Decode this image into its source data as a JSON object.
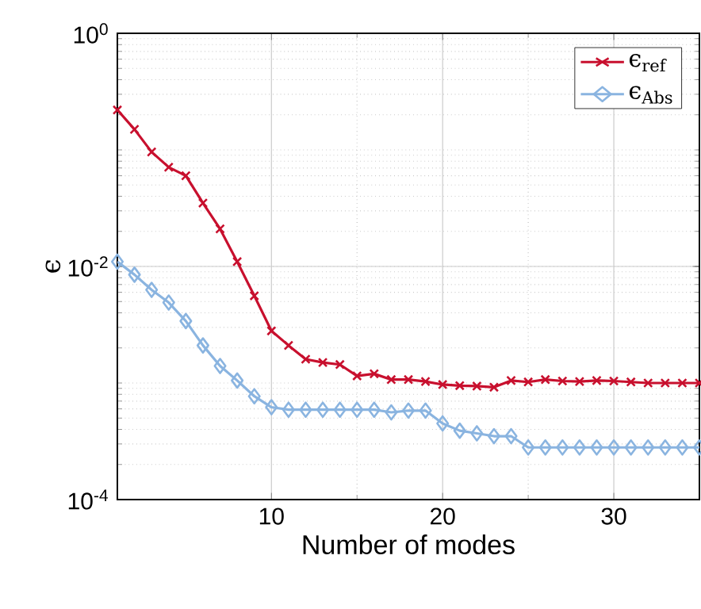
{
  "chart_data": {
    "type": "line",
    "xlabel": "Number of modes",
    "ylabel": "ϵ",
    "log": "y",
    "grid": true,
    "legend": "top right",
    "xlim": [
      1,
      35
    ],
    "xticks": [
      10,
      20,
      30
    ],
    "ylim": [
      0.0001,
      1
    ],
    "yticks": [
      {
        "value": 0.0001,
        "label": "10$^{-4}$"
      },
      {
        "value": 0.01,
        "label": "10$^{-2}$"
      },
      {
        "value": 1,
        "label": "10$^{0}$"
      }
    ],
    "x": [
      1,
      2,
      3,
      4,
      5,
      6,
      7,
      8,
      9,
      10,
      11,
      12,
      13,
      14,
      15,
      16,
      17,
      18,
      19,
      20,
      21,
      22,
      23,
      24,
      25,
      26,
      27,
      28,
      29,
      30,
      31,
      32,
      33,
      34,
      35
    ],
    "series": [
      {
        "name": "ϵ$_{ref}$",
        "color": "#c8102e",
        "marker": "cross",
        "values": [
          0.22,
          0.15,
          0.096,
          0.071,
          0.06,
          0.035,
          0.021,
          0.011,
          0.0056,
          0.0028,
          0.0021,
          0.0016,
          0.0015,
          0.00144,
          0.00115,
          0.0012,
          0.00107,
          0.00107,
          0.00103,
          0.00097,
          0.00095,
          0.00094,
          0.00092,
          0.00105,
          0.00102,
          0.00107,
          0.00104,
          0.00103,
          0.00105,
          0.00104,
          0.00102,
          0.001,
          0.001,
          0.001,
          0.001
        ]
      },
      {
        "name": "ϵ$_{Abs}$",
        "color": "#8ab4e0",
        "marker": "diamond",
        "values": [
          0.011,
          0.0085,
          0.0063,
          0.0049,
          0.0034,
          0.0021,
          0.0014,
          0.00105,
          0.00077,
          0.00062,
          0.00059,
          0.00059,
          0.00059,
          0.00059,
          0.00059,
          0.00059,
          0.00056,
          0.00058,
          0.00058,
          0.00045,
          0.00039,
          0.00037,
          0.00035,
          0.00035,
          0.00028,
          0.00028,
          0.00028,
          0.00028,
          0.00028,
          0.00028,
          0.00028,
          0.00028,
          0.00028,
          0.00028,
          0.00028
        ]
      }
    ]
  }
}
